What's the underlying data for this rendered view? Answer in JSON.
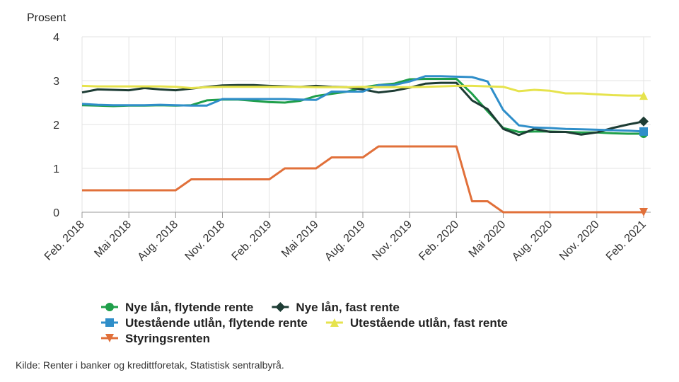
{
  "chart_data": {
    "type": "line",
    "y_label": "Prosent",
    "source": "Kilde: Renter i banker og kredittforetak, Statistisk sentralbyrå.",
    "categories": [
      "Feb. 2018",
      null,
      null,
      "Mai 2018",
      null,
      null,
      "Aug. 2018",
      null,
      null,
      "Nov. 2018",
      null,
      null,
      "Feb. 2019",
      null,
      null,
      "Mai 2019",
      null,
      null,
      "Aug. 2019",
      null,
      null,
      "Nov. 2019",
      null,
      null,
      "Feb. 2020",
      null,
      null,
      "Mai 2020",
      null,
      null,
      "Aug. 2020",
      null,
      null,
      "Nov. 2020",
      null,
      null,
      "Feb. 2021"
    ],
    "ylim": [
      0,
      4
    ],
    "yticks": [
      0,
      1,
      2,
      3,
      4
    ],
    "grid": true,
    "series": [
      {
        "name": "Nye lån, flytende rente",
        "color": "#1f9f4a",
        "marker": "circle",
        "values": [
          2.44,
          2.43,
          2.42,
          2.43,
          2.43,
          2.44,
          2.43,
          2.44,
          2.55,
          2.57,
          2.57,
          2.54,
          2.51,
          2.5,
          2.54,
          2.65,
          2.7,
          2.75,
          2.85,
          2.9,
          2.93,
          3.03,
          3.04,
          3.04,
          3.04,
          2.7,
          2.3,
          1.92,
          1.83,
          1.84,
          1.84,
          1.83,
          1.82,
          1.82,
          1.8,
          1.79,
          1.79
        ]
      },
      {
        "name": "Nye lån, fast rente",
        "color": "#1d3c34",
        "marker": "diamond",
        "values": [
          2.73,
          2.8,
          2.79,
          2.78,
          2.83,
          2.8,
          2.78,
          2.82,
          2.86,
          2.89,
          2.9,
          2.9,
          2.88,
          2.87,
          2.86,
          2.88,
          2.86,
          2.85,
          2.8,
          2.73,
          2.77,
          2.84,
          2.93,
          2.95,
          2.95,
          2.55,
          2.35,
          1.9,
          1.76,
          1.9,
          1.83,
          1.83,
          1.77,
          1.82,
          1.92,
          2.0,
          2.07
        ]
      },
      {
        "name": "Utestående utlån, flytende rente",
        "color": "#2f8ec9",
        "marker": "square",
        "values": [
          2.47,
          2.45,
          2.44,
          2.44,
          2.44,
          2.45,
          2.44,
          2.43,
          2.43,
          2.58,
          2.58,
          2.58,
          2.58,
          2.58,
          2.57,
          2.56,
          2.75,
          2.75,
          2.75,
          2.9,
          2.9,
          2.98,
          3.1,
          3.1,
          3.09,
          3.08,
          2.98,
          2.33,
          1.98,
          1.93,
          1.92,
          1.9,
          1.89,
          1.88,
          1.87,
          1.86,
          1.84
        ]
      },
      {
        "name": "Utestående utlån, fast rente",
        "color": "#e6e34d",
        "marker": "triangle",
        "values": [
          2.88,
          2.87,
          2.87,
          2.87,
          2.87,
          2.87,
          2.86,
          2.83,
          2.85,
          2.86,
          2.86,
          2.86,
          2.86,
          2.86,
          2.86,
          2.85,
          2.85,
          2.85,
          2.86,
          2.85,
          2.85,
          2.85,
          2.86,
          2.87,
          2.88,
          2.88,
          2.87,
          2.86,
          2.76,
          2.79,
          2.77,
          2.71,
          2.71,
          2.69,
          2.67,
          2.66,
          2.66
        ]
      },
      {
        "name": "Styringsrenten",
        "color": "#e1703a",
        "marker": "triangle-down",
        "values": [
          0.5,
          0.5,
          0.5,
          0.5,
          0.5,
          0.5,
          0.5,
          0.75,
          0.75,
          0.75,
          0.75,
          0.75,
          0.75,
          1.0,
          1.0,
          1.0,
          1.25,
          1.25,
          1.25,
          1.5,
          1.5,
          1.5,
          1.5,
          1.5,
          1.5,
          0.25,
          0.25,
          0,
          0,
          0,
          0,
          0,
          0,
          0,
          0,
          0,
          0
        ]
      }
    ]
  }
}
